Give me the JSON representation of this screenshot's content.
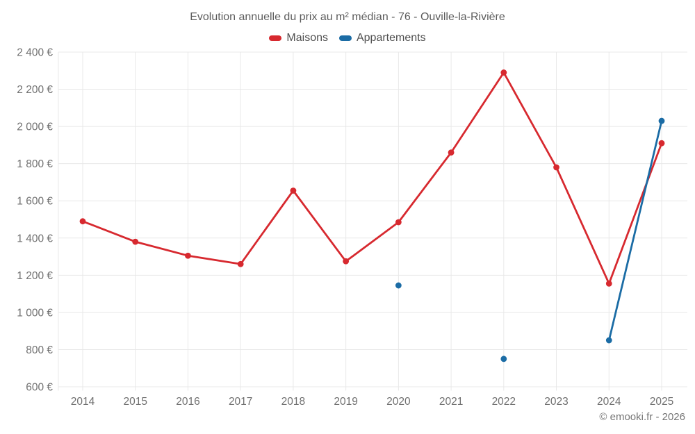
{
  "title": "Evolution annuelle du prix au m² médian - 76 - Ouville-la-Rivière",
  "credit": "© emooki.fr - 2026",
  "colors": {
    "maisons": "#d7292f",
    "appartements": "#1b6ca5",
    "grid": "#e8e8e8",
    "axis_label": "#707070",
    "title_text": "#5c5c5c"
  },
  "chart_data": {
    "type": "line",
    "title": "Evolution annuelle du prix au m² médian - 76 - Ouville-la-Rivière",
    "x": [
      2014,
      2015,
      2016,
      2017,
      2018,
      2019,
      2020,
      2021,
      2022,
      2023,
      2024,
      2025
    ],
    "series": [
      {
        "name": "Maisons",
        "color": "#d7292f",
        "values": [
          1490,
          1380,
          1305,
          1260,
          1655,
          1275,
          1485,
          1860,
          2290,
          1780,
          1155,
          1910
        ]
      },
      {
        "name": "Appartements",
        "color": "#1b6ca5",
        "values": [
          null,
          null,
          null,
          null,
          null,
          null,
          1145,
          null,
          750,
          null,
          850,
          2030
        ]
      }
    ],
    "xlabel": "",
    "ylabel": "",
    "ylim": [
      600,
      2400
    ],
    "ytick_step": 200,
    "yticks": [
      600,
      800,
      1000,
      1200,
      1400,
      1600,
      1800,
      2000,
      2200,
      2400
    ],
    "ytick_labels": [
      "600 €",
      "800 €",
      "1 000 €",
      "1 200 €",
      "1 400 €",
      "1 600 €",
      "1 800 €",
      "2 000 €",
      "2 200 €",
      "2 400 €"
    ],
    "xtick_labels": [
      "2014",
      "2015",
      "2016",
      "2017",
      "2018",
      "2019",
      "2020",
      "2021",
      "2022",
      "2023",
      "2024",
      "2025"
    ],
    "grid": true,
    "legend_position": "top"
  }
}
